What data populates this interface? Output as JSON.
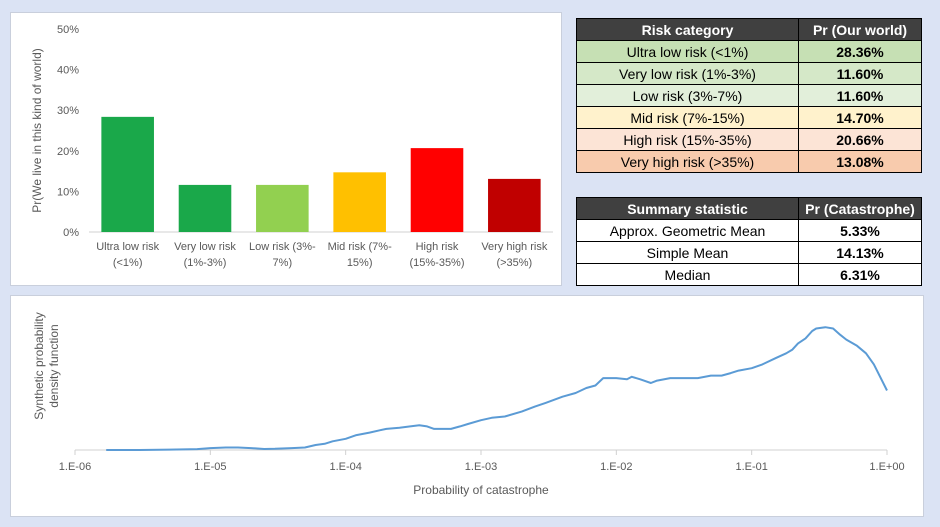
{
  "chart_data": [
    {
      "type": "bar",
      "categories": [
        "Ultra low risk (<1%)",
        "Very low risk (1%-3%)",
        "Low risk (3%-7%)",
        "Mid risk (7%-15%)",
        "High risk (15%-35%)",
        "Very high risk (>35%)"
      ],
      "category_lines": [
        [
          "Ultra low risk",
          "(<1%)"
        ],
        [
          "Very low risk",
          "(1%-3%)"
        ],
        [
          "Low risk (3%-",
          "7%)"
        ],
        [
          "Mid risk (7%-",
          "15%)"
        ],
        [
          "High risk",
          "(15%-35%)"
        ],
        [
          "Very high risk",
          "(>35%)"
        ]
      ],
      "values": [
        28.36,
        11.6,
        11.6,
        14.7,
        20.66,
        13.08
      ],
      "colors": [
        "#1aa84a",
        "#1aa84a",
        "#92d050",
        "#ffc000",
        "#ff0000",
        "#c00000"
      ],
      "ylabel": "Pr(We live in this kind of world)",
      "ylim": [
        0,
        50
      ],
      "yticks": [
        0,
        10,
        20,
        30,
        40,
        50
      ],
      "ytick_labels": [
        "0%",
        "10%",
        "20%",
        "30%",
        "40%",
        "50%"
      ],
      "grid": false
    },
    {
      "type": "line",
      "xlabel": "Probability of catastrophe",
      "ylabel_lines": [
        "Synthetic probability",
        "density function"
      ],
      "x_scale": "log",
      "xlim": [
        1e-06,
        1
      ],
      "xticks": [
        1e-06,
        1e-05,
        0.0001,
        0.001,
        0.01,
        0.1,
        1
      ],
      "xtick_labels": [
        "1.E-06",
        "1.E-05",
        "1.E-04",
        "1.E-03",
        "1.E-02",
        "1.E-01",
        "1.E+00"
      ],
      "ylim": [
        0,
        1
      ],
      "line_color": "#5b9bd5",
      "series": [
        {
          "x": [
            1.7e-06,
            3e-06,
            5e-06,
            8e-06,
            1e-05,
            1.3e-05,
            1.6e-05,
            2e-05,
            2.5e-05,
            3e-05,
            4e-05,
            5e-05,
            6e-05,
            7e-05,
            8e-05,
            0.0001,
            0.00012,
            0.00015,
            0.00018,
            0.0002,
            0.00025,
            0.0003,
            0.00035,
            0.0004,
            0.00045,
            0.0005,
            0.0006,
            0.0007,
            0.0008,
            0.001,
            0.0012,
            0.0015,
            0.002,
            0.0025,
            0.003,
            0.004,
            0.005,
            0.006,
            0.007,
            0.008,
            0.01,
            0.012,
            0.013,
            0.015,
            0.018,
            0.02,
            0.025,
            0.03,
            0.04,
            0.05,
            0.06,
            0.07,
            0.08,
            0.1,
            0.12,
            0.15,
            0.18,
            0.2,
            0.22,
            0.25,
            0.28,
            0.3,
            0.35,
            0.4,
            0.45,
            0.5,
            0.6,
            0.7,
            0.8,
            1.0
          ],
          "y": [
            0.0,
            0.0,
            0.003,
            0.007,
            0.015,
            0.02,
            0.02,
            0.015,
            0.008,
            0.01,
            0.015,
            0.02,
            0.04,
            0.05,
            0.07,
            0.09,
            0.12,
            0.14,
            0.16,
            0.17,
            0.18,
            0.19,
            0.2,
            0.19,
            0.17,
            0.17,
            0.17,
            0.19,
            0.21,
            0.24,
            0.26,
            0.27,
            0.31,
            0.35,
            0.38,
            0.43,
            0.46,
            0.5,
            0.52,
            0.58,
            0.58,
            0.57,
            0.59,
            0.57,
            0.54,
            0.56,
            0.58,
            0.58,
            0.58,
            0.6,
            0.6,
            0.62,
            0.64,
            0.66,
            0.69,
            0.74,
            0.78,
            0.81,
            0.86,
            0.9,
            0.96,
            0.98,
            0.99,
            0.98,
            0.93,
            0.89,
            0.84,
            0.78,
            0.69,
            0.48
          ]
        }
      ]
    }
  ],
  "risk_table": {
    "headers": [
      "Risk category",
      "Pr (Our world)"
    ],
    "rows": [
      {
        "label": "Ultra low risk (<1%)",
        "value": "28.36%",
        "color": "#c6e0b4"
      },
      {
        "label": "Very low risk (1%-3%)",
        "value": "11.60%",
        "color": "#d5e8c8"
      },
      {
        "label": "Low risk (3%-7%)",
        "value": "11.60%",
        "color": "#e2efda"
      },
      {
        "label": "Mid risk (7%-15%)",
        "value": "14.70%",
        "color": "#fff2cc"
      },
      {
        "label": "High risk (15%-35%)",
        "value": "20.66%",
        "color": "#fce4d6"
      },
      {
        "label": "Very high risk (>35%)",
        "value": "13.08%",
        "color": "#f8cbad"
      }
    ]
  },
  "summary_table": {
    "headers": [
      "Summary statistic",
      "Pr (Catastrophe)"
    ],
    "rows": [
      {
        "label": "Approx. Geometric Mean",
        "value": "5.33%"
      },
      {
        "label": "Simple Mean",
        "value": "14.13%"
      },
      {
        "label": "Median",
        "value": "6.31%"
      }
    ]
  }
}
